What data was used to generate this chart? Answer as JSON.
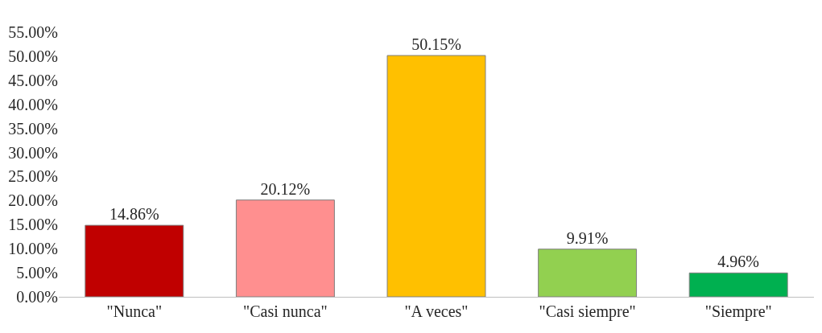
{
  "chart_data": {
    "type": "bar",
    "categories": [
      "\"Nunca\"",
      "\"Casi nunca\"",
      "\"A veces\"",
      "\"Casi siempre\"",
      "\"Siempre\""
    ],
    "values": [
      14.86,
      20.12,
      50.15,
      9.91,
      4.96
    ],
    "colors": [
      "#c00000",
      "#ff8f8f",
      "#ffc000",
      "#92d050",
      "#00b050"
    ],
    "value_labels": [
      "14.86%",
      "20.12%",
      "50.15%",
      "9.91%",
      "4.96%"
    ],
    "ylim": [
      0,
      55
    ],
    "yticks": [
      {
        "value": 0,
        "label": "0.00%"
      },
      {
        "value": 5,
        "label": "5.00%"
      },
      {
        "value": 10,
        "label": "10.00%"
      },
      {
        "value": 15,
        "label": "15.00%"
      },
      {
        "value": 20,
        "label": "20.00%"
      },
      {
        "value": 25,
        "label": "25.00%"
      },
      {
        "value": 30,
        "label": "30.00%"
      },
      {
        "value": 35,
        "label": "35.00%"
      },
      {
        "value": 40,
        "label": "40.00%"
      },
      {
        "value": 45,
        "label": "45.00%"
      },
      {
        "value": 50,
        "label": "50.00%"
      },
      {
        "value": 55,
        "label": "55.00%"
      }
    ],
    "legend": false
  }
}
